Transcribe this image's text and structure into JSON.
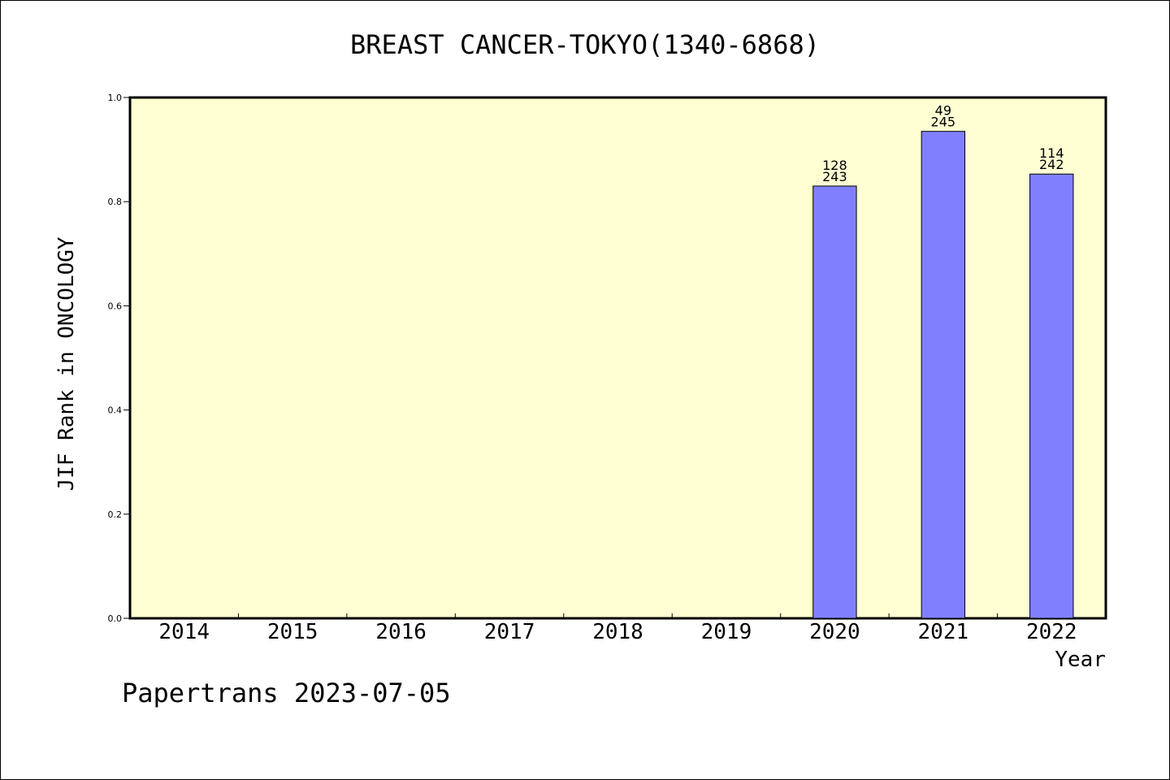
{
  "chart_data": {
    "type": "bar",
    "title": "BREAST CANCER-TOKYO(1340-6868)",
    "xlabel": "Year",
    "ylabel": "JIF Rank in ONCOLOGY",
    "categories": [
      "2014",
      "2015",
      "2016",
      "2017",
      "2018",
      "2019",
      "2020",
      "2021",
      "2022"
    ],
    "values": [
      null,
      null,
      null,
      null,
      null,
      null,
      0.83,
      0.935,
      0.853
    ],
    "rank_labels": [
      null,
      null,
      null,
      null,
      null,
      null,
      "128",
      "49",
      "114"
    ],
    "total_labels": [
      null,
      null,
      null,
      null,
      null,
      null,
      "243",
      "245",
      "242"
    ],
    "ylim": [
      0,
      1.0
    ],
    "yticks": [
      "0.0",
      "0.2",
      "0.4",
      "0.6",
      "0.8",
      "1.0"
    ],
    "grid": false,
    "colors": {
      "plot_background": "#ffffd3",
      "bar_fill": "#8080ff",
      "bar_stroke": "#000000"
    }
  },
  "footer": {
    "text": "Papertrans 2023-07-05"
  }
}
